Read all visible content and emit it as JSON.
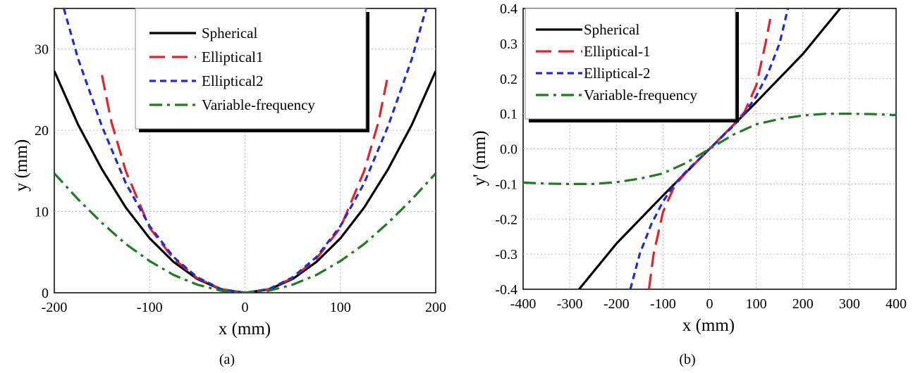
{
  "chart_data": [
    {
      "panel": "a",
      "type": "line",
      "caption": "(a)",
      "xlabel": "x (mm)",
      "ylabel": "y (mm)",
      "xlim": [
        -200,
        200
      ],
      "ylim": [
        0,
        35
      ],
      "xticks": [
        -200,
        -100,
        0,
        100,
        200
      ],
      "yticks": [
        0,
        10,
        20,
        30
      ],
      "xtick_labels": [
        "-200",
        "-100",
        "0",
        "100",
        "200"
      ],
      "ytick_labels": [
        "0",
        "10",
        "20",
        "30"
      ],
      "grid": true,
      "legend_position": "top-right",
      "series": [
        {
          "name": "Spherical",
          "color": "#000000",
          "style": "solid",
          "points": [
            [
              -200,
              27.3
            ],
            [
              -175,
              20.7
            ],
            [
              -150,
              15.2
            ],
            [
              -125,
              10.5
            ],
            [
              -100,
              6.7
            ],
            [
              -75,
              3.8
            ],
            [
              -50,
              1.7
            ],
            [
              -25,
              0.4
            ],
            [
              0,
              0
            ],
            [
              25,
              0.4
            ],
            [
              50,
              1.7
            ],
            [
              75,
              3.8
            ],
            [
              100,
              6.7
            ],
            [
              125,
              10.5
            ],
            [
              150,
              15.2
            ],
            [
              175,
              20.7
            ],
            [
              200,
              27.3
            ]
          ]
        },
        {
          "name": "Elliptical1",
          "color": "#e8202a",
          "style": "dashed",
          "points": [
            [
              -150,
              26.8
            ],
            [
              -140,
              21.0
            ],
            [
              -125,
              15.0
            ],
            [
              -100,
              8.0
            ],
            [
              -75,
              4.2
            ],
            [
              -50,
              1.8
            ],
            [
              -25,
              0.45
            ],
            [
              0,
              0
            ],
            [
              25,
              0.45
            ],
            [
              50,
              1.8
            ],
            [
              75,
              4.2
            ],
            [
              100,
              8.0
            ],
            [
              125,
              15.0
            ],
            [
              140,
              21.0
            ],
            [
              150,
              26.8
            ]
          ]
        },
        {
          "name": "Elliptical2",
          "color": "#1f2bd6",
          "style": "dotted",
          "points": [
            [
              -190,
              35
            ],
            [
              -175,
              28.8
            ],
            [
              -150,
              20.5
            ],
            [
              -125,
              13.5
            ],
            [
              -100,
              8.2
            ],
            [
              -75,
              4.4
            ],
            [
              -50,
              1.9
            ],
            [
              -25,
              0.45
            ],
            [
              0,
              0
            ],
            [
              25,
              0.45
            ],
            [
              50,
              1.9
            ],
            [
              75,
              4.4
            ],
            [
              100,
              8.2
            ],
            [
              125,
              13.5
            ],
            [
              150,
              20.5
            ],
            [
              175,
              28.8
            ],
            [
              190,
              35
            ]
          ]
        },
        {
          "name": "Variable-frequency",
          "color": "#1e7d1e",
          "style": "dashdot",
          "points": [
            [
              -200,
              14.7
            ],
            [
              -175,
              11.5
            ],
            [
              -150,
              8.6
            ],
            [
              -125,
              6.0
            ],
            [
              -100,
              3.9
            ],
            [
              -75,
              2.2
            ],
            [
              -50,
              1.0
            ],
            [
              -25,
              0.25
            ],
            [
              0,
              0
            ],
            [
              25,
              0.25
            ],
            [
              50,
              1.0
            ],
            [
              75,
              2.2
            ],
            [
              100,
              3.9
            ],
            [
              125,
              6.0
            ],
            [
              150,
              8.6
            ],
            [
              175,
              11.5
            ],
            [
              200,
              14.7
            ]
          ]
        }
      ]
    },
    {
      "panel": "b",
      "type": "line",
      "caption": "(b)",
      "xlabel": "x (mm)",
      "ylabel": "y' (mm)",
      "xlim": [
        -400,
        400
      ],
      "ylim": [
        -0.4,
        0.4
      ],
      "xticks": [
        -400,
        -300,
        -200,
        -100,
        0,
        100,
        200,
        300,
        400
      ],
      "yticks": [
        -0.4,
        -0.3,
        -0.2,
        -0.1,
        0.0,
        0.1,
        0.2,
        0.3,
        0.4
      ],
      "xtick_labels": [
        "-400",
        "-300",
        "-200",
        "-100",
        "0",
        "100",
        "200",
        "300",
        "400"
      ],
      "ytick_labels": [
        "-0.4",
        "-0.3",
        "-0.2",
        "-0.1",
        "0.0",
        "0.1",
        "0.2",
        "0.3",
        "0.4"
      ],
      "grid": true,
      "legend_position": "top-left",
      "series": [
        {
          "name": "Spherical",
          "color": "#000000",
          "style": "solid",
          "points": [
            [
              -280,
              -0.4
            ],
            [
              -200,
              -0.27
            ],
            [
              -100,
              -0.133
            ],
            [
              0,
              0
            ],
            [
              100,
              0.133
            ],
            [
              200,
              0.27
            ],
            [
              280,
              0.4
            ]
          ]
        },
        {
          "name": "Elliptical-1",
          "color": "#e8202a",
          "style": "dashed",
          "points": [
            [
              -130,
              -0.4
            ],
            [
              -120,
              -0.3
            ],
            [
              -100,
              -0.18
            ],
            [
              -75,
              -0.105
            ],
            [
              -50,
              -0.067
            ],
            [
              -25,
              -0.033
            ],
            [
              0,
              0
            ],
            [
              25,
              0.033
            ],
            [
              50,
              0.067
            ],
            [
              75,
              0.105
            ],
            [
              100,
              0.18
            ],
            [
              120,
              0.3
            ],
            [
              130,
              0.37
            ]
          ]
        },
        {
          "name": "Elliptical-2",
          "color": "#1f2bd6",
          "style": "dotted",
          "points": [
            [
              -170,
              -0.4
            ],
            [
              -150,
              -0.3
            ],
            [
              -125,
              -0.215
            ],
            [
              -100,
              -0.15
            ],
            [
              -75,
              -0.1
            ],
            [
              -50,
              -0.064
            ],
            [
              -25,
              -0.032
            ],
            [
              0,
              0
            ],
            [
              25,
              0.032
            ],
            [
              50,
              0.064
            ],
            [
              75,
              0.1
            ],
            [
              100,
              0.15
            ],
            [
              125,
              0.215
            ],
            [
              150,
              0.3
            ],
            [
              168,
              0.4
            ]
          ]
        },
        {
          "name": "Variable-frequency",
          "color": "#1e7d1e",
          "style": "dashdot",
          "points": [
            [
              -400,
              -0.096
            ],
            [
              -350,
              -0.099
            ],
            [
              -300,
              -0.1
            ],
            [
              -250,
              -0.1
            ],
            [
              -200,
              -0.095
            ],
            [
              -150,
              -0.085
            ],
            [
              -100,
              -0.07
            ],
            [
              -50,
              -0.04
            ],
            [
              0,
              0
            ],
            [
              50,
              0.04
            ],
            [
              100,
              0.07
            ],
            [
              150,
              0.085
            ],
            [
              200,
              0.095
            ],
            [
              250,
              0.1
            ],
            [
              300,
              0.1
            ],
            [
              350,
              0.099
            ],
            [
              400,
              0.096
            ]
          ]
        }
      ]
    }
  ]
}
